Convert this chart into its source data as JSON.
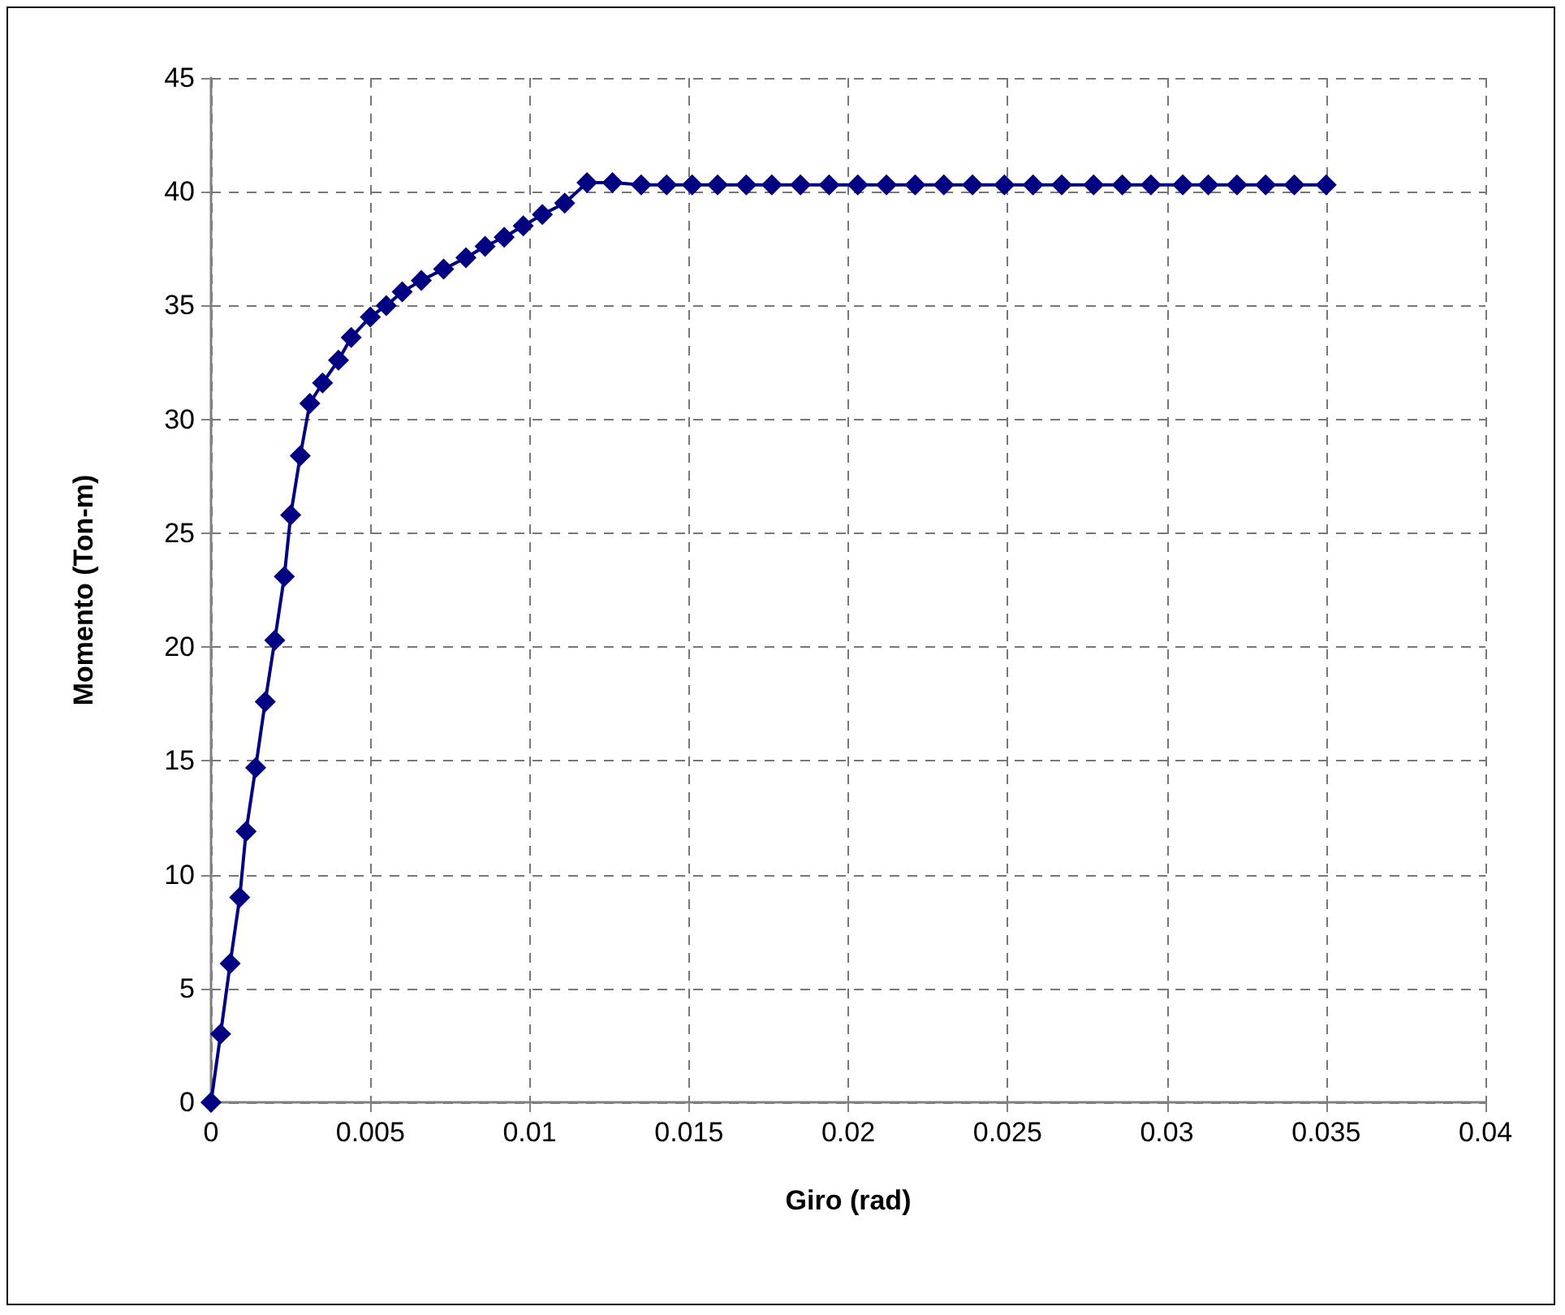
{
  "chart_data": {
    "type": "line",
    "xlabel": "Giro (rad)",
    "ylabel": "Momento (Ton-m)",
    "xlim": [
      0,
      0.04
    ],
    "xticks": [
      0,
      0.005,
      0.01,
      0.015,
      0.02,
      0.025,
      0.03,
      0.035,
      0.04
    ],
    "ylim": [
      0,
      45
    ],
    "yticks": [
      0,
      5,
      10,
      15,
      20,
      25,
      30,
      35,
      40,
      45
    ],
    "grid": true,
    "marker": "diamond",
    "line_style": "solid",
    "series": [
      {
        "color": "#000080",
        "x": [
          0,
          0.0003,
          0.0006,
          0.0009,
          0.0011,
          0.0014,
          0.0017,
          0.002,
          0.0023,
          0.0025,
          0.0028,
          0.0031,
          0.0035,
          0.004,
          0.0044,
          0.005,
          0.0055,
          0.006,
          0.0066,
          0.0073,
          0.008,
          0.0086,
          0.0092,
          0.0098,
          0.0104,
          0.0111,
          0.0118,
          0.0126,
          0.0135,
          0.0143,
          0.0151,
          0.0159,
          0.0168,
          0.0176,
          0.0185,
          0.0194,
          0.0203,
          0.0212,
          0.0221,
          0.023,
          0.0239,
          0.0249,
          0.0258,
          0.0267,
          0.0277,
          0.0286,
          0.0295,
          0.0305,
          0.0313,
          0.0322,
          0.0331,
          0.034,
          0.035
        ],
        "values": [
          0,
          3.0,
          6.1,
          9.0,
          11.9,
          14.7,
          17.6,
          20.3,
          23.1,
          25.8,
          28.4,
          30.7,
          31.6,
          32.6,
          33.6,
          34.5,
          35.0,
          35.6,
          36.1,
          36.6,
          37.1,
          37.6,
          38.0,
          38.5,
          39.0,
          39.5,
          40.4,
          40.4,
          40.3,
          40.3,
          40.3,
          40.3,
          40.3,
          40.3,
          40.3,
          40.3,
          40.3,
          40.3,
          40.3,
          40.3,
          40.3,
          40.3,
          40.3,
          40.3,
          40.3,
          40.3,
          40.3,
          40.3,
          40.3,
          40.3,
          40.3,
          40.3,
          40.3
        ]
      }
    ]
  }
}
